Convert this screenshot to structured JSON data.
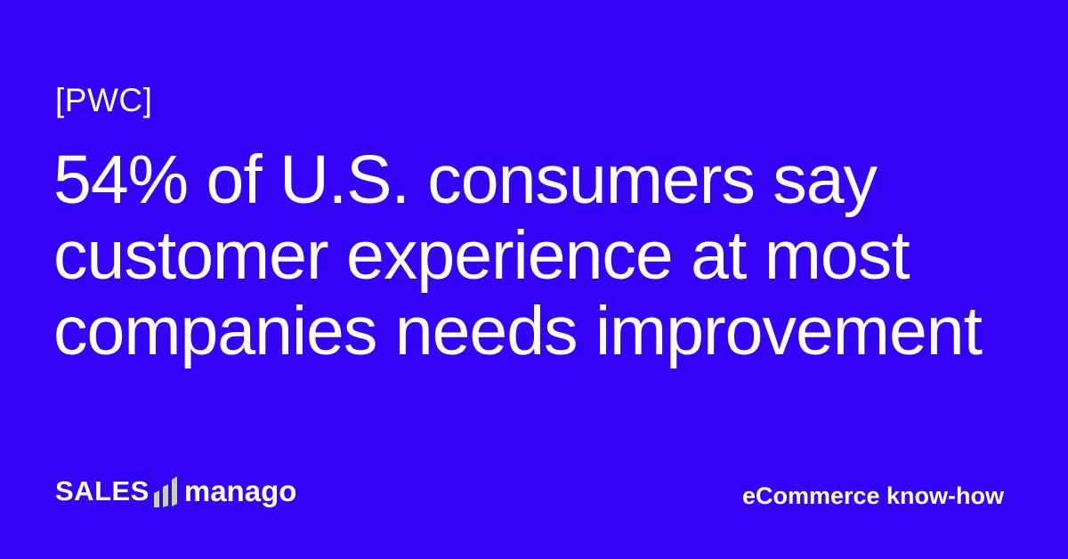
{
  "source": "[PWC]",
  "headline": {
    "lines": [
      "54% of U.S. consumers say",
      "customer experience at most",
      "companies needs improvement"
    ]
  },
  "logo": {
    "part1": "SALES",
    "part2": "manago",
    "bars_color": "#c6d99d"
  },
  "tagline": "eCommerce know-how",
  "colors": {
    "background": "#3303f6",
    "text": "#ffffff"
  }
}
